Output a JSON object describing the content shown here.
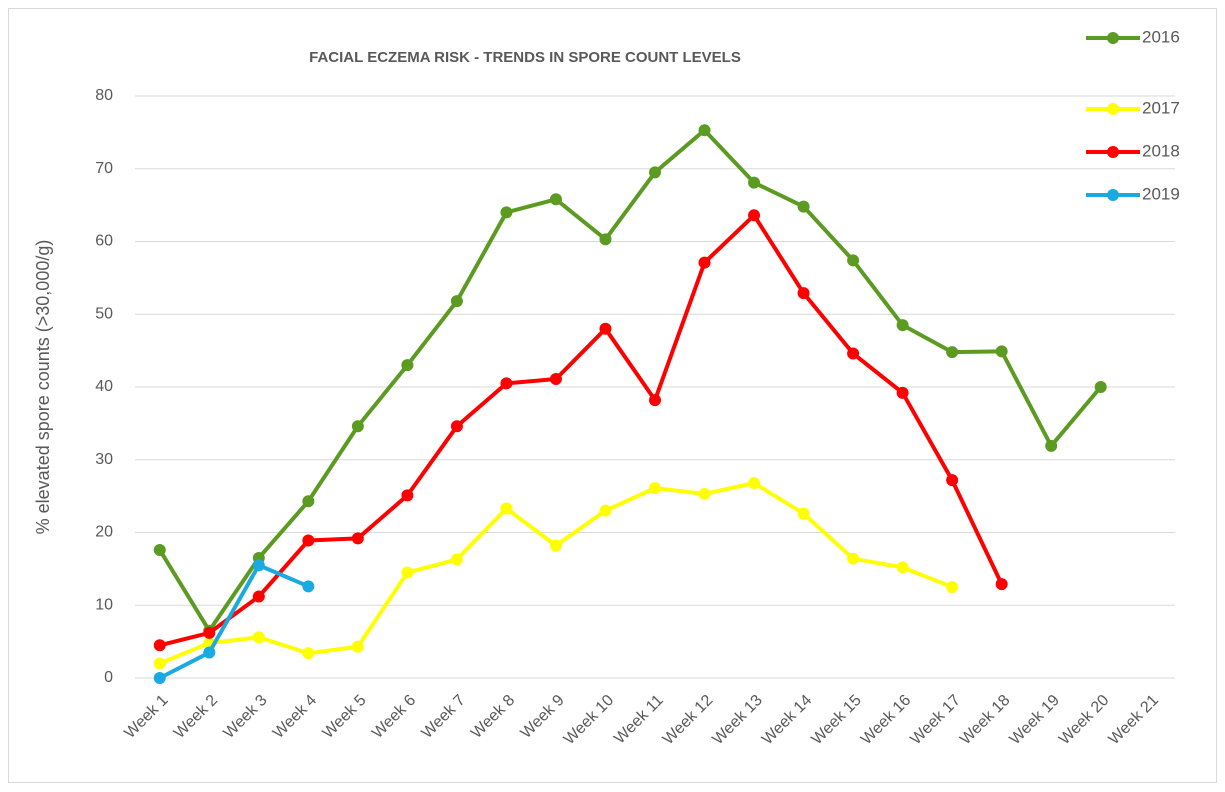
{
  "chart_data": {
    "type": "line",
    "title": "FACIAL ECZEMA RISK - TRENDS IN SPORE COUNT LEVELS",
    "y_label": "% elevated spore counts (>30,000/g)",
    "categories": [
      "Week 1",
      "Week 2",
      "Week 3",
      "Week 4",
      "Week 5",
      "Week 6",
      "Week 7",
      "Week 8",
      "Week 9",
      "Week 10",
      "Week 11",
      "Week 12",
      "Week 13",
      "Week 14",
      "Week 15",
      "Week 16",
      "Week 17",
      "Week 18",
      "Week 19",
      "Week 20",
      "Week 21"
    ],
    "series": [
      {
        "name": "2016",
        "color": "#5b9b21",
        "values": [
          17.6,
          6.5,
          16.5,
          24.3,
          34.6,
          43,
          51.8,
          64,
          65.8,
          60.3,
          69.5,
          75.3,
          68.1,
          64.8,
          57.4,
          48.5,
          44.8,
          44.9,
          31.9,
          40,
          null
        ]
      },
      {
        "name": "2017",
        "color": "#ffff00",
        "values": [
          2.0,
          4.8,
          5.6,
          3.4,
          4.3,
          14.5,
          16.3,
          23.3,
          18.2,
          23,
          26.1,
          25.3,
          26.8,
          22.6,
          16.4,
          15.2,
          12.5,
          null,
          null,
          null,
          null
        ]
      },
      {
        "name": "2018",
        "color": "#ff0000",
        "values": [
          4.5,
          6.2,
          11.2,
          18.9,
          19.2,
          25.1,
          34.6,
          40.5,
          41.1,
          48,
          38.2,
          57.1,
          63.6,
          52.9,
          44.6,
          39.2,
          27.2,
          12.9,
          null,
          null,
          null
        ]
      },
      {
        "name": "2019",
        "color": "#1aa9e0",
        "values": [
          0,
          3.5,
          15.5,
          12.6,
          null,
          null,
          null,
          null,
          null,
          null,
          null,
          null,
          null,
          null,
          null,
          null,
          null,
          null,
          null,
          null,
          null
        ]
      }
    ],
    "ylim": [
      0,
      80
    ],
    "yticks": [
      0,
      10,
      20,
      30,
      40,
      50,
      60,
      70,
      80
    ],
    "grid": true
  }
}
